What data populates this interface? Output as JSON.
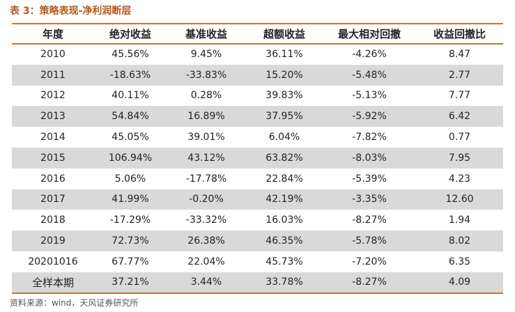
{
  "caption": "表 3：策略表现-净利润断层",
  "headers": [
    "年度",
    "绝对收益",
    "基准收益",
    "超额收益",
    "最大相对回撤",
    "收益回撤比"
  ],
  "rows": [
    [
      "2010",
      "45.56%",
      "9.45%",
      "36.11%",
      "-4.26%",
      "8.47"
    ],
    [
      "2011",
      "-18.63%",
      "-33.83%",
      "15.20%",
      "-5.48%",
      "2.77"
    ],
    [
      "2012",
      "40.11%",
      "0.28%",
      "39.83%",
      "-5.13%",
      "7.77"
    ],
    [
      "2013",
      "54.84%",
      "16.89%",
      "37.95%",
      "-5.92%",
      "6.42"
    ],
    [
      "2014",
      "45.05%",
      "39.01%",
      "6.04%",
      "-7.82%",
      "0.77"
    ],
    [
      "2015",
      "106.94%",
      "43.12%",
      "63.82%",
      "-8.03%",
      "7.95"
    ],
    [
      "2016",
      "5.06%",
      "-17.78%",
      "22.84%",
      "-5.39%",
      "4.23"
    ],
    [
      "2017",
      "41.99%",
      "-0.20%",
      "42.19%",
      "-3.35%",
      "12.60"
    ],
    [
      "2018",
      "-17.29%",
      "-33.32%",
      "16.03%",
      "-8.27%",
      "1.94"
    ],
    [
      "2019",
      "72.73%",
      "26.38%",
      "46.35%",
      "-5.78%",
      "8.02"
    ],
    [
      "20201016",
      "67.77%",
      "22.04%",
      "45.73%",
      "-7.20%",
      "6.35"
    ],
    [
      "全样本期",
      "37.21%",
      "3.44%",
      "33.78%",
      "-8.27%",
      "4.09"
    ]
  ],
  "source": "资料来源：wind，天风证券研究所",
  "colors": {
    "caption": "#b35a1f",
    "rule": "#c8732e",
    "shade": "#d9d9d9"
  }
}
